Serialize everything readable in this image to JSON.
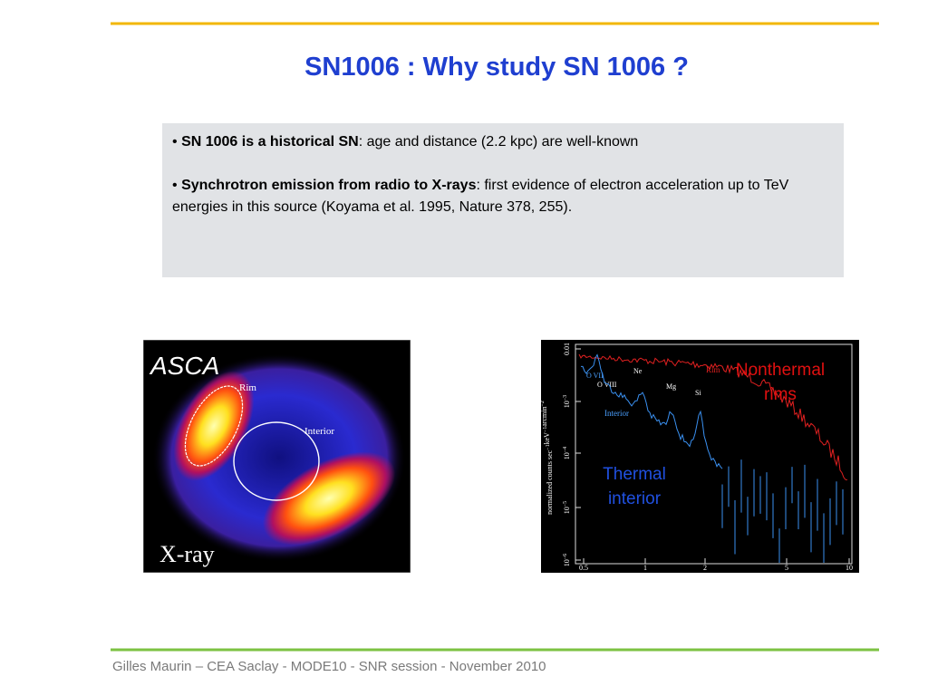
{
  "header": {
    "title": "SN1006 : Why study SN 1006 ?"
  },
  "text_box": {
    "bullets": [
      {
        "bullet": "•",
        "bold": "SN 1006 is a historical SN",
        "text": ": age and distance (2.2 kpc) are well-known"
      },
      {
        "bullet": "•",
        "bold": "Synchrotron emission from radio to X-rays",
        "text": ": first evidence of electron acceleration up to TeV energies in this source (Koyama et al. 1995, Nature 378, 255)."
      }
    ]
  },
  "xray_image": {
    "label": "ASCA",
    "annotations": [
      "Rim",
      "Interior"
    ],
    "caption": "X-ray"
  },
  "spectrum": {
    "y_label": [
      {
        "text": "normalized counts sec",
        "sup": "−1"
      },
      {
        "text": "keV",
        "sup": "−1"
      },
      {
        "text": "arcmin",
        "sup": "−2"
      }
    ],
    "y_ticks": [
      {
        "base": "0.01",
        "exp": ""
      },
      {
        "base": "10",
        "exp": "−3"
      },
      {
        "base": "10",
        "exp": "−4"
      },
      {
        "base": "10",
        "exp": "−5"
      },
      {
        "base": "10",
        "exp": "−6"
      }
    ],
    "x_ticks": [
      "0.5",
      "1",
      "2",
      "5",
      "10"
    ],
    "line_labels": [
      "O VII",
      "O VIII",
      "Ne",
      "Mg",
      "Si"
    ],
    "series_labels": [
      "Rim",
      "Interior"
    ],
    "callouts": [
      "Nonthermal rims",
      "Thermal interior"
    ]
  },
  "footer": {
    "text": "Gilles Maurin – CEA Saclay - MODE10 - SNR session - November 2010"
  }
}
